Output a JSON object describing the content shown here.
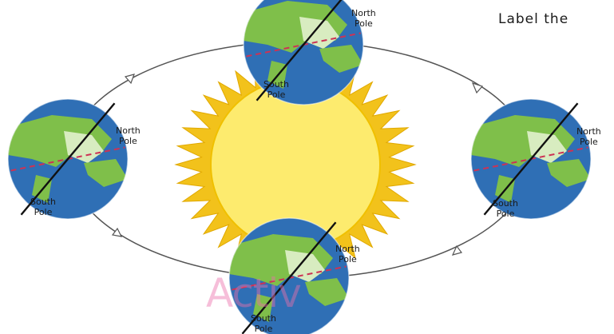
{
  "instruction": "Label the",
  "watermark": "Activ",
  "orbit_arrow_count": 4,
  "globes": [
    {
      "id": "top",
      "north_line1": "North",
      "north_line2": "Pole",
      "south_line1": "South",
      "south_line2": "Pole"
    },
    {
      "id": "left",
      "north_line1": "North",
      "north_line2": "Pole",
      "south_line1": "South",
      "south_line2": "Pole"
    },
    {
      "id": "right",
      "north_line1": "North",
      "north_line2": "Pole",
      "south_line1": "South",
      "south_line2": "Pole"
    },
    {
      "id": "bottom",
      "north_line1": "North",
      "north_line2": "Pole",
      "south_line1": "South",
      "south_line2": "Pole"
    }
  ],
  "colors": {
    "ocean": "#2f6fb5",
    "land": "#7fbf4a",
    "land_light": "#d8ecc0",
    "axis": "#111111",
    "equator": "#cc3355",
    "sun_core": "#fdeb6e",
    "sun_rays": "#f2c21b",
    "orbit": "#555555"
  }
}
